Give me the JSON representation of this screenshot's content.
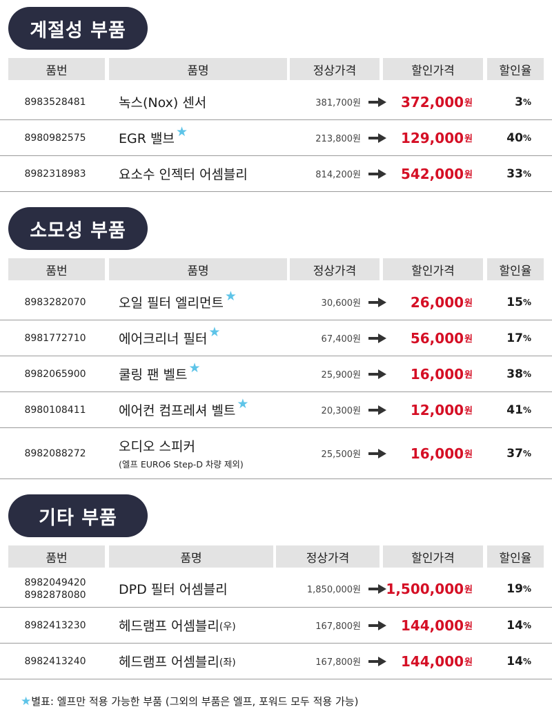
{
  "colors": {
    "pill_bg": "#2a2d42",
    "header_bg": "#e3e3e3",
    "sale_red": "#d50f25",
    "star_blue": "#5ec4e8"
  },
  "columns": [
    "품번",
    "품명",
    "정상가격",
    "할인가격",
    "할인율"
  ],
  "sections": [
    {
      "title": "계절성 부품",
      "rows": [
        {
          "part_numbers": [
            "8983528481"
          ],
          "name": "녹스(Nox) 센서",
          "star": false,
          "note": "",
          "regular": "381,700원",
          "sale": "372,000",
          "sale_unit": "원",
          "rate": "3",
          "rate_unit": "%"
        },
        {
          "part_numbers": [
            "8980982575"
          ],
          "name": "EGR 밸브",
          "star": true,
          "note": "",
          "regular": "213,800원",
          "sale": "129,000",
          "sale_unit": "원",
          "rate": "40",
          "rate_unit": "%"
        },
        {
          "part_numbers": [
            "8982318983"
          ],
          "name": "요소수 인젝터 어셈블리",
          "star": false,
          "note": "",
          "regular": "814,200원",
          "sale": "542,000",
          "sale_unit": "원",
          "rate": "33",
          "rate_unit": "%"
        }
      ]
    },
    {
      "title": "소모성 부품",
      "rows": [
        {
          "part_numbers": [
            "8983282070"
          ],
          "name": "오일 필터 엘리먼트",
          "star": true,
          "note": "",
          "regular": "30,600원",
          "sale": "26,000",
          "sale_unit": "원",
          "rate": "15",
          "rate_unit": "%"
        },
        {
          "part_numbers": [
            "8981772710"
          ],
          "name": "에어크리너 필터",
          "star": true,
          "note": "",
          "regular": "67,400원",
          "sale": "56,000",
          "sale_unit": "원",
          "rate": "17",
          "rate_unit": "%"
        },
        {
          "part_numbers": [
            "8982065900"
          ],
          "name": "쿨링 팬 벨트",
          "star": true,
          "note": "",
          "regular": "25,900원",
          "sale": "16,000",
          "sale_unit": "원",
          "rate": "38",
          "rate_unit": "%"
        },
        {
          "part_numbers": [
            "8980108411"
          ],
          "name": "에어컨 컴프레셔 벨트",
          "star": true,
          "note": "",
          "regular": "20,300원",
          "sale": "12,000",
          "sale_unit": "원",
          "rate": "41",
          "rate_unit": "%"
        },
        {
          "part_numbers": [
            "8982088272"
          ],
          "name": "오디오 스피커",
          "star": false,
          "note": "(엘프 EURO6 Step-D 차량 제외)",
          "regular": "25,500원",
          "sale": "16,000",
          "sale_unit": "원",
          "rate": "37",
          "rate_unit": "%"
        }
      ]
    },
    {
      "title": "기타 부품",
      "rows": [
        {
          "part_numbers": [
            "8982049420",
            "8982878080"
          ],
          "name": "DPD 필터 어셈블리",
          "star": false,
          "note": "",
          "regular": "1,850,000원",
          "sale": "1,500,000",
          "sale_unit": "원",
          "rate": "19",
          "rate_unit": "%"
        },
        {
          "part_numbers": [
            "8982413230"
          ],
          "name": "헤드램프 어셈블리",
          "name_suffix": "(우)",
          "star": false,
          "note": "",
          "regular": "167,800원",
          "sale": "144,000",
          "sale_unit": "원",
          "rate": "14",
          "rate_unit": "%"
        },
        {
          "part_numbers": [
            "8982413240"
          ],
          "name": "헤드램프 어셈블리",
          "name_suffix": "(좌)",
          "star": false,
          "note": "",
          "regular": "167,800원",
          "sale": "144,000",
          "sale_unit": "원",
          "rate": "14",
          "rate_unit": "%"
        }
      ]
    }
  ],
  "footnote": {
    "star": "★",
    "text": "별표: 엘프만 적용 가능한 부품 (그외의 부품은 엘프, 포워드 모두 적용 가능)"
  }
}
